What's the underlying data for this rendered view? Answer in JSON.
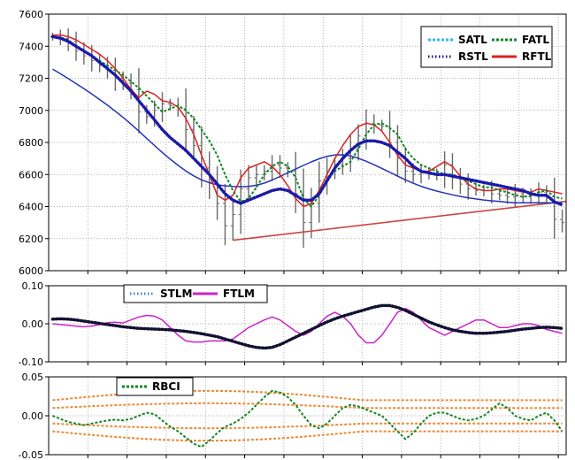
{
  "chart_data": [
    {
      "type": "line",
      "panel": "price",
      "ylim": [
        6000,
        7600
      ],
      "yticks": [
        "6000",
        "6200",
        "6400",
        "6600",
        "6800",
        "7000",
        "7200",
        "7400",
        "7600"
      ],
      "grid": true,
      "legend_position": "top-right",
      "series": [
        {
          "name": "SATL",
          "color": "#33bbee",
          "style": "dashed"
        },
        {
          "name": "FATL",
          "color": "#118822",
          "style": "dashed",
          "values": [
            7460,
            7455,
            7440,
            7400,
            7370,
            7340,
            7310,
            7280,
            7250,
            7220,
            7180,
            7140,
            7090,
            7040,
            6990,
            7010,
            7030,
            7000,
            6950,
            6880,
            6810,
            6720,
            6600,
            6500,
            6430,
            6450,
            6520,
            6600,
            6650,
            6680,
            6650,
            6580,
            6450,
            6400,
            6470,
            6570,
            6620,
            6650,
            6680,
            6760,
            6850,
            6910,
            6920,
            6890,
            6850,
            6760,
            6700,
            6660,
            6640,
            6620,
            6600,
            6600,
            6580,
            6560,
            6540,
            6520,
            6520,
            6500,
            6490,
            6470,
            6460,
            6470,
            6490,
            6500,
            6460,
            6450
          ]
        },
        {
          "name": "RSTL",
          "color": "#1a1aaa",
          "style": "dotted",
          "values": [
            7460,
            7450,
            7430,
            7400,
            7370,
            7340,
            7300,
            7260,
            7220,
            7170,
            7120,
            7060,
            7000,
            6940,
            6880,
            6830,
            6790,
            6750,
            6700,
            6650,
            6600,
            6540,
            6480,
            6440,
            6420,
            6440,
            6460,
            6480,
            6500,
            6510,
            6500,
            6470,
            6440,
            6440,
            6480,
            6560,
            6640,
            6700,
            6750,
            6790,
            6810,
            6810,
            6800,
            6780,
            6740,
            6700,
            6650,
            6620,
            6610,
            6600,
            6600,
            6590,
            6580,
            6570,
            6560,
            6550,
            6540,
            6530,
            6520,
            6510,
            6500,
            6480,
            6470,
            6470,
            6430,
            6410
          ]
        },
        {
          "name": "RFTL",
          "color": "#dd2222",
          "style": "solid",
          "values": [
            7470,
            7470,
            7460,
            7440,
            7410,
            7380,
            7350,
            7310,
            7260,
            7200,
            7130,
            7080,
            7120,
            7100,
            7060,
            7050,
            7020,
            6950,
            6850,
            6720,
            6600,
            6470,
            6440,
            6470,
            6580,
            6640,
            6660,
            6680,
            6650,
            6600,
            6530,
            6450,
            6400,
            6420,
            6500,
            6600,
            6700,
            6780,
            6850,
            6900,
            6920,
            6910,
            6870,
            6800,
            6720,
            6660,
            6640,
            6620,
            6620,
            6650,
            6680,
            6650,
            6590,
            6540,
            6510,
            6500,
            6500,
            6510,
            6510,
            6500,
            6490,
            6490,
            6510,
            6500,
            6490,
            6480
          ]
        }
      ],
      "price_bars": {
        "color": "#6a6a6a",
        "close": [
          7460,
          7450,
          7430,
          7370,
          7340,
          7310,
          7280,
          7250,
          7200,
          7170,
          7130,
          6990,
          6960,
          7000,
          7040,
          7030,
          7010,
          6880,
          6780,
          6640,
          6550,
          6420,
          6280,
          6350,
          6510,
          6580,
          6600,
          6620,
          6660,
          6640,
          6620,
          6480,
          6300,
          6420,
          6560,
          6620,
          6660,
          6700,
          6760,
          6840,
          6920,
          6910,
          6900,
          6800,
          6700,
          6620,
          6600,
          6610,
          6600,
          6600,
          6660,
          6580,
          6540,
          6510,
          6500,
          6500,
          6480,
          6470,
          6460,
          6480,
          6460,
          6470,
          6490,
          6460,
          6320,
          6300
        ]
      },
      "support_line": {
        "color": "#cc4444",
        "from": [
          23,
          6190
        ],
        "to": [
          65,
          6430
        ]
      }
    },
    {
      "type": "line",
      "panel": "oscillator-1",
      "ylim": [
        -0.1,
        0.1
      ],
      "yticks": [
        "-0.10",
        "0.00",
        "0.10"
      ],
      "grid": true,
      "legend_position": "top-left",
      "series": [
        {
          "name": "STLM",
          "color": "#4488dd",
          "style": "dotted",
          "values": [
            0.012,
            0.013,
            0.012,
            0.01,
            0.007,
            0.004,
            0.001,
            -0.002,
            -0.005,
            -0.008,
            -0.01,
            -0.012,
            -0.013,
            -0.014,
            -0.015,
            -0.016,
            -0.018,
            -0.02,
            -0.023,
            -0.026,
            -0.03,
            -0.034,
            -0.04,
            -0.046,
            -0.052,
            -0.058,
            -0.062,
            -0.064,
            -0.062,
            -0.055,
            -0.045,
            -0.035,
            -0.025,
            -0.015,
            -0.005,
            0.005,
            0.013,
            0.02,
            0.026,
            0.032,
            0.038,
            0.044,
            0.048,
            0.048,
            0.043,
            0.035,
            0.025,
            0.015,
            0.005,
            -0.003,
            -0.01,
            -0.016,
            -0.02,
            -0.023,
            -0.025,
            -0.025,
            -0.024,
            -0.022,
            -0.02,
            -0.017,
            -0.014,
            -0.012,
            -0.01,
            -0.009,
            -0.01,
            -0.012
          ]
        },
        {
          "name": "FTLM",
          "color": "#cc22cc",
          "style": "solid",
          "values": [
            0.0,
            -0.002,
            -0.004,
            -0.006,
            -0.008,
            -0.006,
            -0.002,
            0.003,
            0.004,
            0.002,
            0.01,
            0.018,
            0.022,
            0.02,
            0.01,
            -0.01,
            -0.03,
            -0.045,
            -0.048,
            -0.048,
            -0.045,
            -0.045,
            -0.045,
            -0.04,
            -0.025,
            -0.01,
            0.0,
            0.01,
            0.018,
            0.01,
            -0.005,
            -0.02,
            -0.03,
            -0.02,
            0.0,
            0.02,
            0.03,
            0.02,
            0.0,
            -0.03,
            -0.05,
            -0.05,
            -0.03,
            0.0,
            0.03,
            0.04,
            0.03,
            0.01,
            -0.01,
            -0.02,
            -0.03,
            -0.02,
            -0.01,
            0.0,
            0.01,
            0.01,
            0.0,
            -0.01,
            -0.01,
            -0.005,
            0.0,
            0.0,
            -0.005,
            -0.015,
            -0.02,
            -0.025
          ]
        }
      ]
    },
    {
      "type": "line",
      "panel": "oscillator-2",
      "ylim": [
        -0.05,
        0.05
      ],
      "yticks": [
        "-0.05",
        "0.00",
        "0.05"
      ],
      "grid": true,
      "legend_position": "top-left",
      "series": [
        {
          "name": "RBCI",
          "color": "#118822",
          "style": "dashed",
          "values": [
            0.0,
            -0.004,
            -0.008,
            -0.01,
            -0.012,
            -0.01,
            -0.008,
            -0.006,
            -0.005,
            -0.006,
            -0.004,
            0.0,
            0.004,
            0.002,
            -0.006,
            -0.014,
            -0.02,
            -0.028,
            -0.036,
            -0.04,
            -0.032,
            -0.022,
            -0.014,
            -0.01,
            -0.004,
            0.004,
            0.014,
            0.024,
            0.032,
            0.03,
            0.024,
            0.014,
            0.0,
            -0.012,
            -0.016,
            -0.01,
            0.0,
            0.01,
            0.014,
            0.012,
            0.008,
            0.004,
            0.0,
            -0.01,
            -0.02,
            -0.03,
            -0.022,
            -0.01,
            0.0,
            0.004,
            0.004,
            0.0,
            -0.004,
            -0.006,
            -0.004,
            0.0,
            0.008,
            0.016,
            0.01,
            0.0,
            -0.004,
            -0.006,
            0.0,
            0.004,
            -0.006,
            -0.02
          ]
        },
        {
          "name": "RBCI-bands",
          "color": "#ee8833",
          "style": "dashed",
          "legend": false,
          "bands": [
            0.02,
            0.01,
            -0.01,
            -0.02
          ],
          "width_growth": 0.012
        }
      ]
    }
  ]
}
